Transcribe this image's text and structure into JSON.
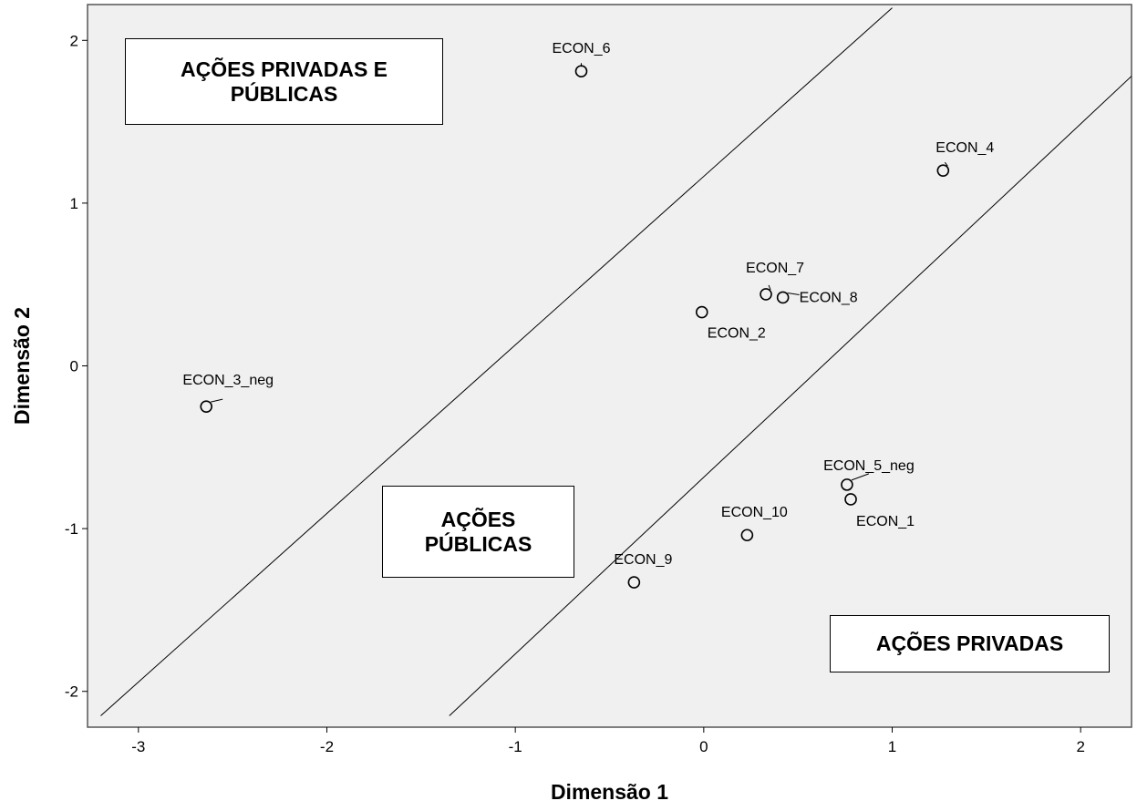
{
  "chart_data": {
    "type": "scatter",
    "xlabel": "Dimensão 1",
    "ylabel": "Dimensão 2",
    "xlim": [
      -3.27,
      2.27
    ],
    "ylim": [
      -2.22,
      2.22
    ],
    "x_ticks": [
      -3,
      -2,
      -1,
      0,
      1,
      2
    ],
    "y_ticks": [
      -2,
      -1,
      0,
      1,
      2
    ],
    "x_tick_labels": [
      "-3",
      "-2",
      "-1",
      "0",
      "1",
      "2"
    ],
    "y_tick_labels": [
      "-2",
      "-1",
      "0",
      "1",
      "2"
    ],
    "grid": false,
    "colors": {
      "plot_background": "#f0f0f0",
      "marker": "#000000",
      "lines": "#000000"
    },
    "points": [
      {
        "label": "ECON_6",
        "x": -0.65,
        "y": 1.81
      },
      {
        "label": "ECON_4",
        "x": 1.27,
        "y": 1.2
      },
      {
        "label": "ECON_7",
        "x": 0.33,
        "y": 0.44
      },
      {
        "label": "ECON_8",
        "x": 0.42,
        "y": 0.42
      },
      {
        "label": "ECON_2",
        "x": -0.01,
        "y": 0.33
      },
      {
        "label": "ECON_3_neg",
        "x": -2.64,
        "y": -0.25
      },
      {
        "label": "ECON_5_neg",
        "x": 0.76,
        "y": -0.73
      },
      {
        "label": "ECON_1",
        "x": 0.78,
        "y": -0.82
      },
      {
        "label": "ECON_10",
        "x": 0.23,
        "y": -1.04
      },
      {
        "label": "ECON_9",
        "x": -0.37,
        "y": -1.33
      }
    ],
    "reference_lines": [
      {
        "from": [
          -3.2,
          -2.15
        ],
        "to": [
          1.0,
          2.2
        ]
      },
      {
        "from": [
          -1.35,
          -2.15
        ],
        "to": [
          2.27,
          1.78
        ]
      }
    ],
    "annotations": [
      {
        "id": "public-private",
        "lines": [
          "AÇÕES PRIVADAS E",
          "PÚBLICAS"
        ]
      },
      {
        "id": "public",
        "lines": [
          "AÇÕES",
          "PÚBLICAS"
        ]
      },
      {
        "id": "private",
        "lines": [
          "AÇÕES PRIVADAS"
        ]
      }
    ]
  }
}
